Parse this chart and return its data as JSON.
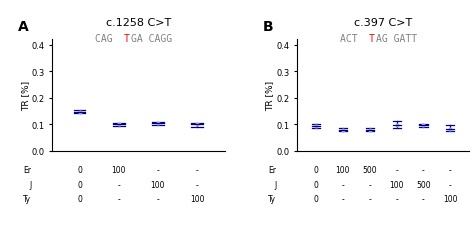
{
  "panel_A": {
    "title": "c.1258 C>T",
    "subtitle_parts": [
      "CAG ",
      "T",
      "GA CAGG"
    ],
    "subtitle_colors": [
      "gray",
      "red",
      "gray"
    ],
    "x": [
      1,
      2,
      3,
      4
    ],
    "y": [
      0.148,
      0.1,
      0.105,
      0.1
    ],
    "yerr_lo": [
      0.005,
      0.005,
      0.008,
      0.01
    ],
    "yerr_hi": [
      0.005,
      0.005,
      0.005,
      0.005
    ],
    "label_rows": {
      "Er": [
        "0",
        "100",
        "-",
        "-"
      ],
      "J": [
        "0",
        "-",
        "100",
        "-"
      ],
      "Ty": [
        "0",
        "-",
        "-",
        "100"
      ]
    }
  },
  "panel_B": {
    "title": "c.397 C>T",
    "subtitle_parts": [
      "ACT ",
      "T",
      "AG GATT"
    ],
    "subtitle_colors": [
      "gray",
      "red",
      "gray"
    ],
    "x": [
      1,
      2,
      3,
      4,
      5,
      6
    ],
    "y": [
      0.095,
      0.08,
      0.08,
      0.096,
      0.096,
      0.083
    ],
    "yerr_lo": [
      0.008,
      0.007,
      0.006,
      0.01,
      0.006,
      0.01
    ],
    "yerr_hi": [
      0.008,
      0.007,
      0.006,
      0.015,
      0.006,
      0.015
    ],
    "label_rows": {
      "Er": [
        "0",
        "100",
        "500",
        "-",
        "-",
        "-"
      ],
      "J": [
        "0",
        "-",
        "-",
        "100",
        "500",
        "-"
      ],
      "Ty": [
        "0",
        "-",
        "-",
        "-",
        "-",
        "100"
      ]
    }
  },
  "dot_color": "#aaaacc",
  "line_color": "#00008B",
  "ylabel": "TR [%]",
  "ylim": [
    0.0,
    0.42
  ],
  "yticks": [
    0.0,
    0.1,
    0.2,
    0.3,
    0.4
  ],
  "label_fontsize": 5.5,
  "title_fontsize": 8,
  "subtitle_fontsize": 7,
  "panel_label_fontsize": 10,
  "tick_fontsize": 6
}
